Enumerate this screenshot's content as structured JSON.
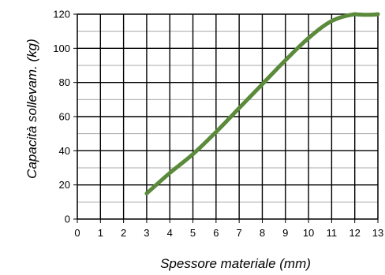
{
  "chart_data": {
    "type": "line",
    "title": "",
    "xlabel": "Spessore materiale (mm)",
    "ylabel": "Capacità sollevam. (kg)",
    "xlim": [
      0,
      13
    ],
    "ylim": [
      0,
      120
    ],
    "x_ticks": [
      "0",
      "1",
      "2",
      "3",
      "4",
      "5",
      "6",
      "7",
      "8",
      "9",
      "10",
      "11",
      "12",
      "13"
    ],
    "y_ticks": [
      "0",
      "20",
      "40",
      "60",
      "80",
      "100",
      "120"
    ],
    "grid": true,
    "legend": "none",
    "series": [
      {
        "color": "#5b8a3a",
        "x": [
          3,
          4,
          5,
          6,
          7,
          8,
          9,
          10,
          11,
          12,
          13
        ],
        "y": [
          15,
          27,
          38,
          51,
          65,
          79,
          93,
          106,
          116,
          120,
          120
        ]
      }
    ]
  }
}
